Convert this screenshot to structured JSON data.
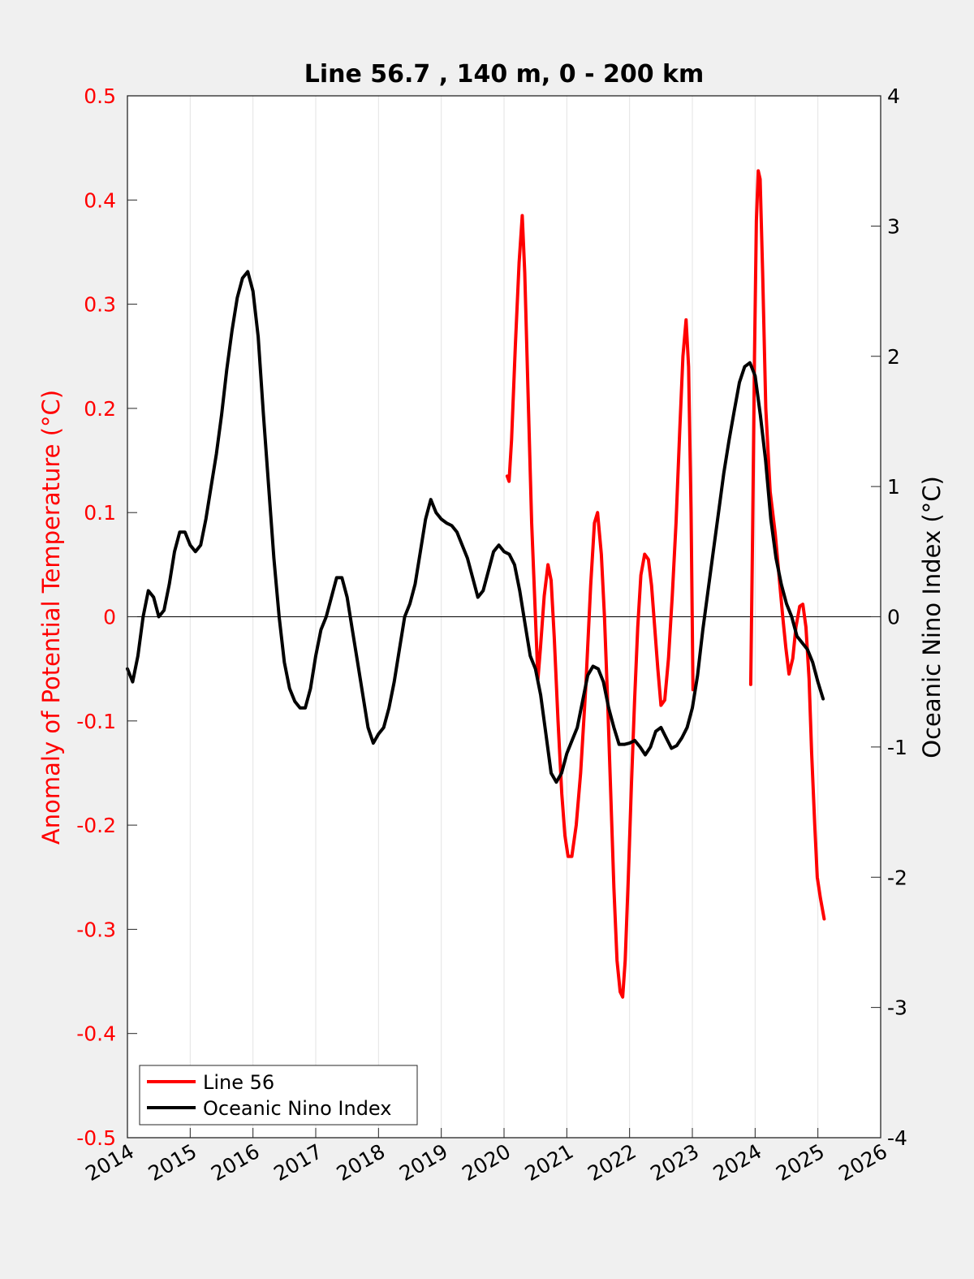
{
  "chart_data": {
    "type": "line",
    "title": "Line 56.7 , 140 m, 0 - 200 km",
    "xlabel": "",
    "ylabel_left": "Anomaly of Potential Temperature (°C)",
    "ylabel_right": "Oceanic Nino Index (°C)",
    "xlim": [
      2014,
      2026
    ],
    "ylim_left": [
      -0.5,
      0.5
    ],
    "ylim_right": [
      -4,
      4
    ],
    "x_ticks": [
      "2014",
      "2015",
      "2016",
      "2017",
      "2018",
      "2019",
      "2020",
      "2021",
      "2022",
      "2023",
      "2024",
      "2025",
      "2026"
    ],
    "y_left_ticks": [
      "0.5",
      "0.4",
      "0.3",
      "0.2",
      "0.1",
      "0",
      "-0.1",
      "-0.2",
      "-0.3",
      "-0.4",
      "-0.5"
    ],
    "y_right_ticks": [
      "4",
      "3",
      "2",
      "1",
      "0",
      "-1",
      "-2",
      "-3",
      "-4"
    ],
    "grid": "vertical",
    "legend_position": "bottom-left",
    "colors": {
      "line56": "#ff0000",
      "oni": "#000000",
      "left_axis": "#ff0000",
      "right_axis": "#000000"
    },
    "series": [
      {
        "name": "Line 56",
        "axis": "left",
        "color": "#ff0000",
        "points": [
          [
            2020.05,
            0.135
          ],
          [
            2020.08,
            0.13
          ],
          [
            2020.12,
            0.17
          ],
          [
            2020.18,
            0.26
          ],
          [
            2020.24,
            0.34
          ],
          [
            2020.29,
            0.385
          ],
          [
            2020.33,
            0.33
          ],
          [
            2020.38,
            0.22
          ],
          [
            2020.44,
            0.09
          ],
          [
            2020.5,
            0.0
          ],
          [
            2020.54,
            -0.06
          ],
          [
            2020.58,
            -0.03
          ],
          [
            2020.64,
            0.02
          ],
          [
            2020.7,
            0.05
          ],
          [
            2020.75,
            0.035
          ],
          [
            2020.8,
            -0.02
          ],
          [
            2020.86,
            -0.1
          ],
          [
            2020.92,
            -0.17
          ],
          [
            2020.97,
            -0.21
          ],
          [
            2021.02,
            -0.23
          ],
          [
            2021.08,
            -0.23
          ],
          [
            2021.15,
            -0.2
          ],
          [
            2021.22,
            -0.15
          ],
          [
            2021.3,
            -0.07
          ],
          [
            2021.38,
            0.03
          ],
          [
            2021.44,
            0.09
          ],
          [
            2021.49,
            0.1
          ],
          [
            2021.55,
            0.06
          ],
          [
            2021.6,
            0.0
          ],
          [
            2021.65,
            -0.08
          ],
          [
            2021.7,
            -0.17
          ],
          [
            2021.75,
            -0.26
          ],
          [
            2021.8,
            -0.33
          ],
          [
            2021.85,
            -0.36
          ],
          [
            2021.89,
            -0.365
          ],
          [
            2021.93,
            -0.33
          ],
          [
            2021.98,
            -0.25
          ],
          [
            2022.03,
            -0.16
          ],
          [
            2022.08,
            -0.08
          ],
          [
            2022.13,
            -0.01
          ],
          [
            2022.18,
            0.04
          ],
          [
            2022.24,
            0.06
          ],
          [
            2022.3,
            0.055
          ],
          [
            2022.35,
            0.03
          ],
          [
            2022.4,
            -0.01
          ],
          [
            2022.45,
            -0.05
          ],
          [
            2022.5,
            -0.085
          ],
          [
            2022.56,
            -0.08
          ],
          [
            2022.62,
            -0.04
          ],
          [
            2022.68,
            0.02
          ],
          [
            2022.74,
            0.09
          ],
          [
            2022.8,
            0.18
          ],
          [
            2022.85,
            0.25
          ],
          [
            2022.9,
            0.285
          ],
          [
            2022.94,
            0.24
          ],
          [
            2022.98,
            0.1
          ],
          [
            2023.01,
            -0.07
          ],
          null,
          [
            2023.93,
            -0.065
          ],
          [
            2023.96,
            0.08
          ],
          [
            2023.99,
            0.25
          ],
          [
            2024.02,
            0.38
          ],
          [
            2024.05,
            0.428
          ],
          [
            2024.08,
            0.42
          ],
          [
            2024.12,
            0.33
          ],
          [
            2024.17,
            0.2
          ],
          [
            2024.24,
            0.12
          ],
          [
            2024.32,
            0.08
          ],
          [
            2024.38,
            0.04
          ],
          [
            2024.44,
            0.0
          ],
          [
            2024.49,
            -0.03
          ],
          [
            2024.54,
            -0.055
          ],
          [
            2024.6,
            -0.04
          ],
          [
            2024.65,
            -0.01
          ],
          [
            2024.71,
            0.01
          ],
          [
            2024.76,
            0.012
          ],
          [
            2024.81,
            -0.01
          ],
          [
            2024.86,
            -0.06
          ],
          [
            2024.9,
            -0.13
          ],
          [
            2024.95,
            -0.2
          ],
          [
            2024.99,
            -0.25
          ],
          [
            2025.04,
            -0.27
          ],
          [
            2025.1,
            -0.29
          ]
        ]
      },
      {
        "name": "Oceanic Nino Index",
        "axis": "right",
        "color": "#000000",
        "points": [
          [
            2014.0,
            -0.4
          ],
          [
            2014.083,
            -0.5
          ],
          [
            2014.167,
            -0.3
          ],
          [
            2014.25,
            0.0
          ],
          [
            2014.333,
            0.2
          ],
          [
            2014.417,
            0.15
          ],
          [
            2014.5,
            0.0
          ],
          [
            2014.583,
            0.05
          ],
          [
            2014.667,
            0.25
          ],
          [
            2014.75,
            0.5
          ],
          [
            2014.833,
            0.65
          ],
          [
            2014.917,
            0.65
          ],
          [
            2015.0,
            0.55
          ],
          [
            2015.083,
            0.5
          ],
          [
            2015.167,
            0.55
          ],
          [
            2015.25,
            0.75
          ],
          [
            2015.333,
            1.0
          ],
          [
            2015.417,
            1.25
          ],
          [
            2015.5,
            1.55
          ],
          [
            2015.583,
            1.9
          ],
          [
            2015.667,
            2.2
          ],
          [
            2015.75,
            2.45
          ],
          [
            2015.833,
            2.6
          ],
          [
            2015.917,
            2.65
          ],
          [
            2016.0,
            2.5
          ],
          [
            2016.083,
            2.15
          ],
          [
            2016.167,
            1.55
          ],
          [
            2016.25,
            1.0
          ],
          [
            2016.333,
            0.45
          ],
          [
            2016.417,
            0.0
          ],
          [
            2016.5,
            -0.35
          ],
          [
            2016.583,
            -0.55
          ],
          [
            2016.667,
            -0.65
          ],
          [
            2016.75,
            -0.7
          ],
          [
            2016.833,
            -0.7
          ],
          [
            2016.917,
            -0.55
          ],
          [
            2017.0,
            -0.3
          ],
          [
            2017.083,
            -0.1
          ],
          [
            2017.167,
            0.0
          ],
          [
            2017.25,
            0.15
          ],
          [
            2017.333,
            0.3
          ],
          [
            2017.417,
            0.3
          ],
          [
            2017.5,
            0.15
          ],
          [
            2017.583,
            -0.1
          ],
          [
            2017.667,
            -0.35
          ],
          [
            2017.75,
            -0.6
          ],
          [
            2017.833,
            -0.85
          ],
          [
            2017.917,
            -0.97
          ],
          [
            2018.0,
            -0.9
          ],
          [
            2018.083,
            -0.85
          ],
          [
            2018.167,
            -0.7
          ],
          [
            2018.25,
            -0.5
          ],
          [
            2018.333,
            -0.25
          ],
          [
            2018.417,
            0.0
          ],
          [
            2018.5,
            0.1
          ],
          [
            2018.583,
            0.25
          ],
          [
            2018.667,
            0.5
          ],
          [
            2018.75,
            0.75
          ],
          [
            2018.833,
            0.9
          ],
          [
            2018.917,
            0.8
          ],
          [
            2019.0,
            0.75
          ],
          [
            2019.083,
            0.72
          ],
          [
            2019.167,
            0.7
          ],
          [
            2019.25,
            0.65
          ],
          [
            2019.333,
            0.55
          ],
          [
            2019.417,
            0.45
          ],
          [
            2019.5,
            0.3
          ],
          [
            2019.583,
            0.15
          ],
          [
            2019.667,
            0.2
          ],
          [
            2019.75,
            0.35
          ],
          [
            2019.833,
            0.5
          ],
          [
            2019.917,
            0.55
          ],
          [
            2020.0,
            0.5
          ],
          [
            2020.083,
            0.48
          ],
          [
            2020.167,
            0.4
          ],
          [
            2020.25,
            0.2
          ],
          [
            2020.333,
            -0.05
          ],
          [
            2020.417,
            -0.3
          ],
          [
            2020.5,
            -0.4
          ],
          [
            2020.583,
            -0.6
          ],
          [
            2020.667,
            -0.9
          ],
          [
            2020.75,
            -1.2
          ],
          [
            2020.833,
            -1.27
          ],
          [
            2020.917,
            -1.2
          ],
          [
            2021.0,
            -1.05
          ],
          [
            2021.083,
            -0.95
          ],
          [
            2021.167,
            -0.85
          ],
          [
            2021.25,
            -0.65
          ],
          [
            2021.333,
            -0.45
          ],
          [
            2021.417,
            -0.38
          ],
          [
            2021.5,
            -0.4
          ],
          [
            2021.583,
            -0.5
          ],
          [
            2021.667,
            -0.7
          ],
          [
            2021.75,
            -0.85
          ],
          [
            2021.833,
            -0.98
          ],
          [
            2021.917,
            -0.98
          ],
          [
            2022.0,
            -0.97
          ],
          [
            2022.083,
            -0.95
          ],
          [
            2022.167,
            -1.0
          ],
          [
            2022.25,
            -1.06
          ],
          [
            2022.333,
            -1.0
          ],
          [
            2022.417,
            -0.88
          ],
          [
            2022.5,
            -0.85
          ],
          [
            2022.583,
            -0.93
          ],
          [
            2022.667,
            -1.01
          ],
          [
            2022.75,
            -0.99
          ],
          [
            2022.833,
            -0.93
          ],
          [
            2022.917,
            -0.85
          ],
          [
            2023.0,
            -0.7
          ],
          [
            2023.083,
            -0.45
          ],
          [
            2023.167,
            -0.1
          ],
          [
            2023.25,
            0.2
          ],
          [
            2023.333,
            0.5
          ],
          [
            2023.417,
            0.8
          ],
          [
            2023.5,
            1.1
          ],
          [
            2023.583,
            1.35
          ],
          [
            2023.667,
            1.58
          ],
          [
            2023.75,
            1.8
          ],
          [
            2023.833,
            1.92
          ],
          [
            2023.917,
            1.95
          ],
          [
            2024.0,
            1.85
          ],
          [
            2024.083,
            1.55
          ],
          [
            2024.167,
            1.2
          ],
          [
            2024.25,
            0.75
          ],
          [
            2024.333,
            0.45
          ],
          [
            2024.417,
            0.25
          ],
          [
            2024.5,
            0.1
          ],
          [
            2024.583,
            0.0
          ],
          [
            2024.667,
            -0.15
          ],
          [
            2024.75,
            -0.2
          ],
          [
            2024.833,
            -0.25
          ],
          [
            2024.917,
            -0.35
          ],
          [
            2025.0,
            -0.5
          ],
          [
            2025.083,
            -0.63
          ]
        ]
      }
    ]
  }
}
